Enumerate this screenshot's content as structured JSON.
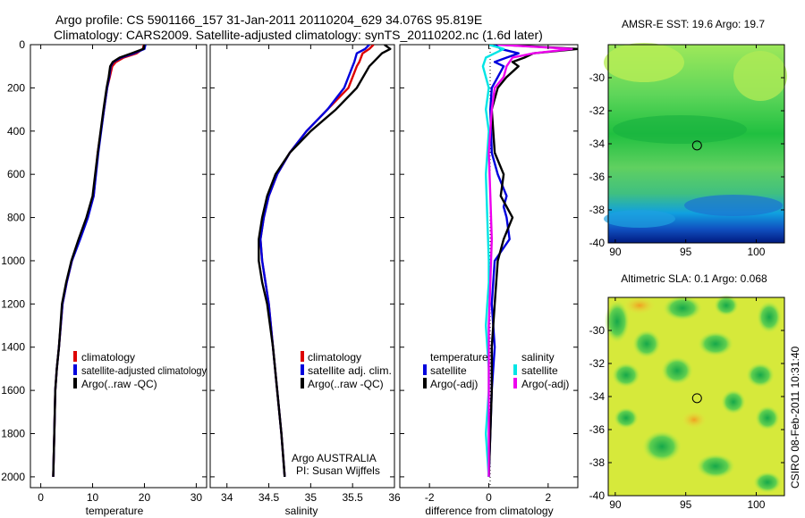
{
  "title": {
    "line1": "Argo profile: CS 5901166_157 31-Jan-2011 20110204_629 34.076S 95.819E",
    "line2": "Climatology: CARS2009. Satellite-adjusted climatology: synTS_20110202.nc (1.6d later)"
  },
  "side_label": "CSIRO 08-Feb-2011 10:31:40",
  "colors": {
    "red": "#dd0000",
    "blue": "#0000dd",
    "black": "#000000",
    "cyan": "#00e5e5",
    "magenta": "#ee00ee"
  },
  "chart_data": [
    {
      "type": "line",
      "id": "temperature",
      "xlabel": "temperature",
      "ylabel": "",
      "xlim": [
        -2,
        32
      ],
      "ylim": [
        2050,
        0
      ],
      "xticks": [
        0,
        10,
        20,
        30
      ],
      "yticks": [
        0,
        200,
        400,
        600,
        800,
        1000,
        1200,
        1400,
        1600,
        1800,
        2000
      ],
      "legend": {
        "position": "lower-right",
        "entries": [
          "climatology",
          "satellite-adjusted climatology",
          "Argo(..raw -QC)"
        ]
      },
      "series": [
        {
          "name": "climatology",
          "color": "red",
          "x": [
            19.9,
            19.7,
            18.5,
            16.0,
            14.5,
            13.8,
            13.3,
            12.8,
            12.2,
            11.0,
            10.2,
            9.0,
            7.5,
            6.0,
            5.0,
            4.2,
            3.5,
            3.1,
            2.8,
            2.6,
            2.45,
            2.4
          ],
          "y": [
            0,
            20,
            40,
            60,
            80,
            100,
            150,
            200,
            300,
            500,
            700,
            800,
            900,
            1000,
            1100,
            1200,
            1400,
            1500,
            1600,
            1800,
            1950,
            2000
          ]
        },
        {
          "name": "satellite-adjusted climatology",
          "color": "blue",
          "x": [
            20.2,
            20.0,
            18.0,
            15.5,
            14.0,
            13.5,
            13.2,
            12.8,
            12.2,
            11.1,
            10.2,
            9.1,
            7.6,
            6.0,
            5.0,
            4.2,
            3.5,
            3.1,
            2.8,
            2.6,
            2.45,
            2.4
          ],
          "y": [
            0,
            20,
            40,
            60,
            80,
            100,
            150,
            200,
            300,
            500,
            700,
            800,
            900,
            1000,
            1100,
            1200,
            1400,
            1500,
            1600,
            1800,
            1950,
            2000
          ]
        },
        {
          "name": "Argo(..raw -QC)",
          "color": "black",
          "x": [
            20.0,
            19.8,
            17.5,
            15.2,
            13.9,
            13.4,
            13.1,
            12.7,
            12.1,
            11.0,
            10.0,
            8.8,
            7.3,
            5.9,
            4.9,
            4.1,
            3.5,
            3.1,
            2.8,
            2.6,
            2.45,
            2.4
          ],
          "y": [
            0,
            20,
            40,
            60,
            80,
            100,
            150,
            200,
            300,
            500,
            700,
            800,
            900,
            1000,
            1100,
            1200,
            1400,
            1500,
            1600,
            1800,
            1950,
            2000
          ]
        }
      ]
    },
    {
      "type": "line",
      "id": "salinity",
      "xlabel": "salinity",
      "ylabel": "",
      "xlim": [
        33.8,
        36.0
      ],
      "ylim": [
        2050,
        0
      ],
      "xticks": [
        34,
        34.5,
        35,
        35.5,
        36
      ],
      "xtick_labels": [
        "34",
        "34.5",
        "35",
        "35.5",
        "36"
      ],
      "legend": {
        "position": "lower-right",
        "entries": [
          "climatology",
          "satellite adj. clim.",
          "Argo(..raw -QC)"
        ]
      },
      "annotation": [
        "Argo AUSTRALIA",
        "PI: Susan Wijffels"
      ],
      "series": [
        {
          "name": "climatology",
          "color": "red",
          "x": [
            35.75,
            35.7,
            35.62,
            35.58,
            35.55,
            35.45,
            35.2,
            34.95,
            34.75,
            34.6,
            34.5,
            34.44,
            34.4,
            34.42,
            34.46,
            34.5,
            34.55,
            34.6,
            34.65,
            34.68,
            34.69
          ],
          "y": [
            0,
            20,
            40,
            80,
            100,
            200,
            300,
            400,
            500,
            600,
            700,
            800,
            900,
            1000,
            1100,
            1200,
            1400,
            1600,
            1800,
            1950,
            2000
          ]
        },
        {
          "name": "satellite adj. clim.",
          "color": "blue",
          "x": [
            35.7,
            35.65,
            35.55,
            35.52,
            35.5,
            35.4,
            35.2,
            34.95,
            34.75,
            34.6,
            34.5,
            34.44,
            34.4,
            34.42,
            34.46,
            34.5,
            34.55,
            34.6,
            34.65,
            34.68,
            34.69
          ],
          "y": [
            0,
            20,
            40,
            80,
            100,
            200,
            300,
            400,
            500,
            600,
            700,
            800,
            900,
            1000,
            1100,
            1200,
            1400,
            1600,
            1800,
            1950,
            2000
          ]
        },
        {
          "name": "Argo(..raw -QC)",
          "color": "black",
          "x": [
            35.88,
            35.95,
            35.85,
            35.75,
            35.7,
            35.55,
            35.3,
            35.0,
            34.75,
            34.58,
            34.48,
            34.42,
            34.38,
            34.38,
            34.42,
            34.48,
            34.55,
            34.6,
            34.65,
            34.68,
            34.69
          ],
          "y": [
            0,
            20,
            40,
            80,
            100,
            200,
            300,
            400,
            500,
            600,
            700,
            800,
            900,
            1000,
            1100,
            1200,
            1400,
            1600,
            1800,
            1950,
            2000
          ]
        }
      ]
    },
    {
      "type": "line",
      "id": "difference",
      "xlabel": "difference from climatology",
      "ylabel": "",
      "xlim": [
        -3,
        3
      ],
      "ylim": [
        2050,
        0
      ],
      "xticks": [
        -2,
        0,
        2
      ],
      "legend": {
        "position": "lower-right",
        "entries": [
          "temperature satellite",
          "temperature Argo(-adj)",
          "salinity satellite",
          "salinity Argo(-adj)"
        ]
      },
      "legend_headers": [
        "temperature",
        "salinity"
      ],
      "series": [
        {
          "name": "temperature satellite",
          "color": "blue",
          "x": [
            0.2,
            0.4,
            1.0,
            0.6,
            0.2,
            0.5,
            0.3,
            0.1,
            0.05,
            0.1,
            0.3,
            0.6,
            0.5,
            0.6,
            0.7,
            0.2,
            0.1,
            0.2,
            0.1,
            0.05,
            0.0
          ],
          "y": [
            0,
            20,
            40,
            60,
            80,
            100,
            150,
            200,
            300,
            500,
            600,
            700,
            750,
            800,
            900,
            1000,
            1200,
            1400,
            1600,
            1800,
            2000
          ]
        },
        {
          "name": "temperature Argo(-adj)",
          "color": "black",
          "x": [
            0.4,
            3.0,
            1.5,
            1.2,
            0.8,
            1.0,
            0.6,
            0.3,
            0.1,
            0.2,
            0.5,
            0.4,
            0.6,
            0.8,
            0.5,
            0.3,
            0.2,
            0.1,
            0.1,
            0.05,
            0.0
          ],
          "y": [
            0,
            20,
            40,
            60,
            80,
            100,
            150,
            200,
            300,
            500,
            600,
            700,
            750,
            800,
            900,
            1000,
            1200,
            1400,
            1600,
            1800,
            2000
          ]
        },
        {
          "name": "salinity satellite",
          "color": "cyan",
          "x": [
            0.0,
            0.5,
            0.2,
            -0.1,
            -0.2,
            0.0,
            -0.1,
            0.0,
            -0.1,
            -0.05,
            0.0,
            0.0,
            -0.05,
            -0.1,
            -0.05,
            0.0,
            0.0,
            -0.1,
            -0.05,
            0.0
          ],
          "y": [
            0,
            20,
            40,
            60,
            100,
            200,
            300,
            400,
            600,
            800,
            1000,
            1100,
            1200,
            1300,
            1400,
            1500,
            1600,
            1800,
            1900,
            2000
          ]
        },
        {
          "name": "salinity Argo(-adj)",
          "color": "magenta",
          "x": [
            0.3,
            2.8,
            1.5,
            0.8,
            0.6,
            0.5,
            0.2,
            0.1,
            0.0,
            0.05,
            0.1,
            0.05,
            0.0,
            0.0,
            0.0,
            0.0
          ],
          "y": [
            0,
            20,
            40,
            60,
            100,
            150,
            200,
            300,
            500,
            700,
            900,
            1100,
            1300,
            1500,
            1800,
            2000
          ]
        }
      ]
    },
    {
      "type": "heatmap",
      "id": "sst-map",
      "title": "AMSR-E SST: 19.6 Argo: 19.7",
      "xlim": [
        89.5,
        102
      ],
      "ylim": [
        -40,
        -28
      ],
      "xticks": [
        90,
        95,
        100
      ],
      "yticks": [
        -30,
        -32,
        -34,
        -36,
        -38,
        -40
      ],
      "argo_position": [
        95.8,
        -34.1
      ]
    },
    {
      "type": "heatmap",
      "id": "sla-map",
      "title": "Altimetric SLA: 0.1  Argo: 0.068",
      "xlim": [
        89.5,
        102
      ],
      "ylim": [
        -40,
        -28
      ],
      "xticks": [
        90,
        95,
        100
      ],
      "yticks": [
        -30,
        -32,
        -34,
        -36,
        -38,
        -40
      ],
      "argo_position": [
        95.8,
        -34.1
      ]
    }
  ]
}
